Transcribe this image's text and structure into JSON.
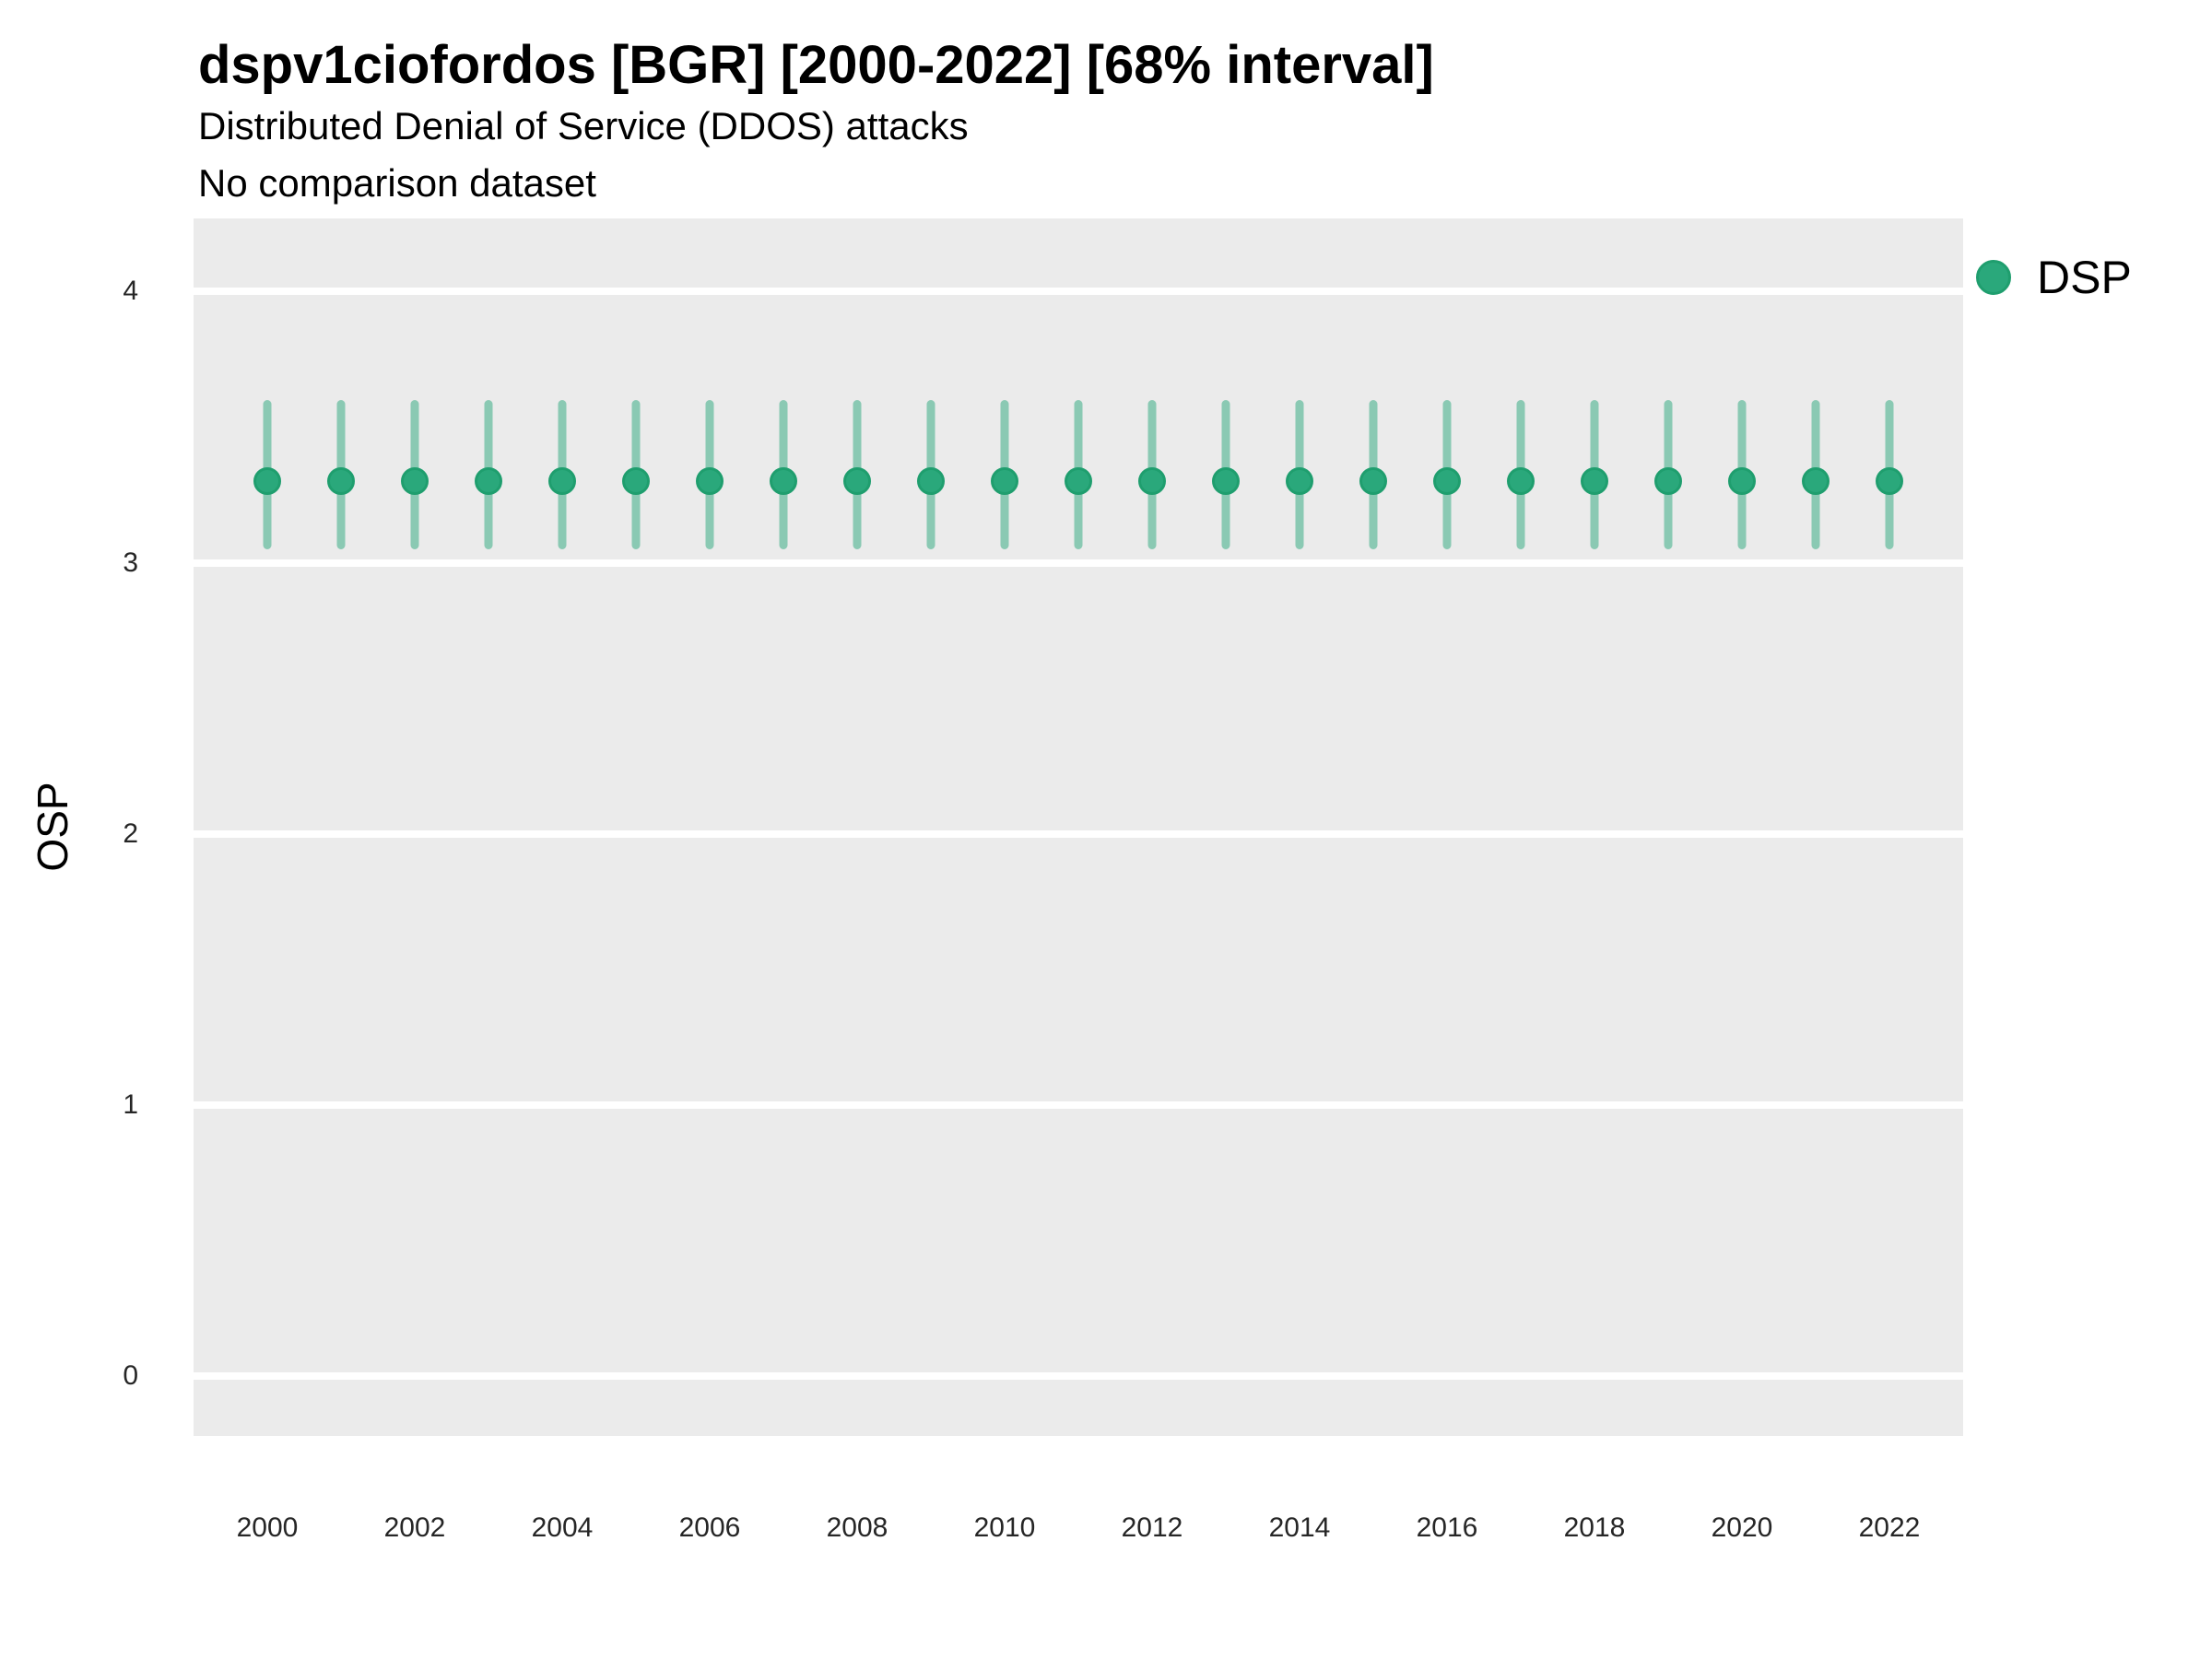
{
  "header": {
    "title": "dspv1ciofordos [BGR] [2000-2022] [68% interval]",
    "subtitle": "Distributed Denial of Service (DDOS) attacks",
    "note": "No comparison dataset"
  },
  "legend": {
    "position": "right",
    "items": [
      {
        "label": "DSP",
        "marker": "circle-icon",
        "color": "#2aa87b"
      }
    ]
  },
  "colors": {
    "panel_background": "#ebebeb",
    "grid_color": "#ffffff",
    "point_color": "#2aa87b",
    "point_edge_color": "#1f9e6e",
    "interval_color": "rgba(42,168,123,0.5)",
    "interval_composite_on_panel": "#8fccb2",
    "text_color": "#000000",
    "tick_text_color": "#262626"
  },
  "chart_data": {
    "type": "pointrange-scatter",
    "title": "dspv1ciofordos [BGR] [2000-2022] [68% interval]",
    "subtitle": "Distributed Denial of Service (DDOS) attacks",
    "annotation": "No comparison dataset",
    "xlabel": "",
    "ylabel": "OSP",
    "xlim": [
      1999,
      2023
    ],
    "ylim": [
      -0.22,
      4.27
    ],
    "yticks": [
      0,
      1,
      2,
      3,
      4
    ],
    "xticks": [
      2000,
      2002,
      2004,
      2006,
      2008,
      2010,
      2012,
      2014,
      2016,
      2018,
      2020,
      2022
    ],
    "grid": "horizontal-major-only",
    "legend_position": "right",
    "interval_label": "68% interval",
    "series": [
      {
        "name": "DSP",
        "color": "#2aa87b",
        "range_color": "rgba(42,168,123,0.5)",
        "x": [
          2000,
          2001,
          2002,
          2003,
          2004,
          2005,
          2006,
          2007,
          2008,
          2009,
          2010,
          2011,
          2012,
          2013,
          2014,
          2015,
          2016,
          2017,
          2018,
          2019,
          2020,
          2021,
          2022
        ],
        "values": [
          3.3,
          3.3,
          3.3,
          3.3,
          3.3,
          3.3,
          3.3,
          3.3,
          3.3,
          3.3,
          3.3,
          3.3,
          3.3,
          3.3,
          3.3,
          3.3,
          3.3,
          3.3,
          3.3,
          3.3,
          3.3,
          3.3,
          3.3
        ],
        "low": [
          3.05,
          3.05,
          3.05,
          3.05,
          3.05,
          3.05,
          3.05,
          3.05,
          3.05,
          3.05,
          3.05,
          3.05,
          3.05,
          3.05,
          3.05,
          3.05,
          3.05,
          3.05,
          3.05,
          3.05,
          3.05,
          3.05,
          3.05
        ],
        "high": [
          3.6,
          3.6,
          3.6,
          3.6,
          3.6,
          3.6,
          3.6,
          3.6,
          3.6,
          3.6,
          3.6,
          3.6,
          3.6,
          3.6,
          3.6,
          3.6,
          3.6,
          3.6,
          3.6,
          3.6,
          3.6,
          3.6,
          3.6
        ]
      }
    ]
  }
}
